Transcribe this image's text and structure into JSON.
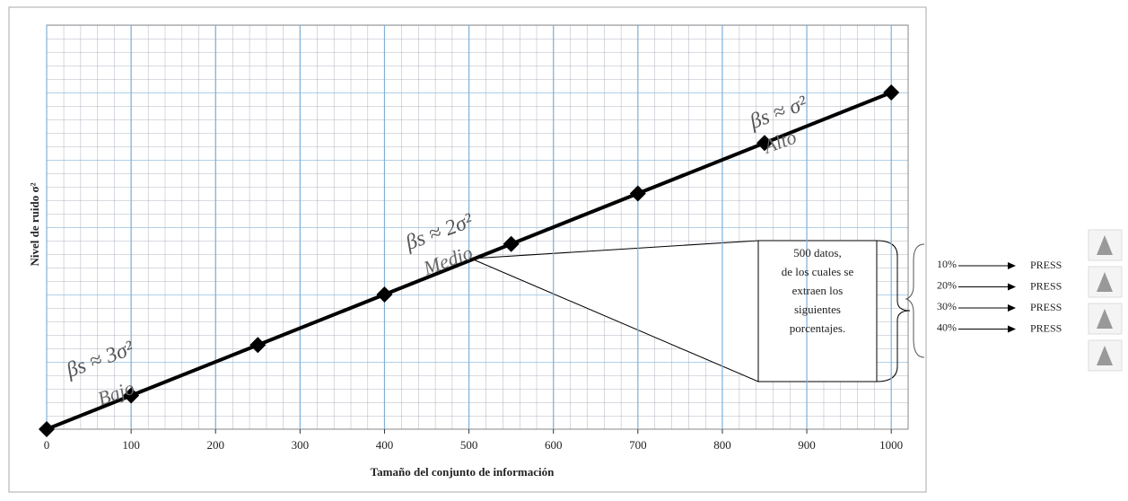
{
  "chart_data": {
    "type": "line",
    "x_label": "Tamaño  del conjunto  de información",
    "y_label": "Nivel de ruido σ²",
    "x": [
      0,
      100,
      250,
      400,
      550,
      700,
      850,
      1000
    ],
    "series": [
      {
        "color": "#000000",
        "values": [
          0,
          0.5,
          1.25,
          2,
          2.75,
          3.5,
          4.25,
          5
        ]
      }
    ],
    "xlim": [
      0,
      1020
    ],
    "ylim": [
      0,
      6
    ],
    "xticks": [
      0,
      100,
      200,
      300,
      400,
      500,
      600,
      700,
      800,
      900,
      1000
    ],
    "grid": true,
    "annotations": [
      {
        "formula": "βs ≈ 3σ²",
        "level": "Bajo"
      },
      {
        "formula": "βs ≈ 2σ²",
        "level": "Medio"
      },
      {
        "formula": "βs ≈ σ²",
        "level": "Alto"
      }
    ],
    "callout": [
      "500 datos,",
      "de los cuales se",
      "extraen los",
      "siguientes",
      "porcentajes."
    ],
    "samples": [
      {
        "percent": "10%",
        "label": "PRESS"
      },
      {
        "percent": "20%",
        "label": "PRESS"
      },
      {
        "percent": "30%",
        "label": "PRESS"
      },
      {
        "percent": "40%",
        "label": "PRESS"
      }
    ]
  }
}
